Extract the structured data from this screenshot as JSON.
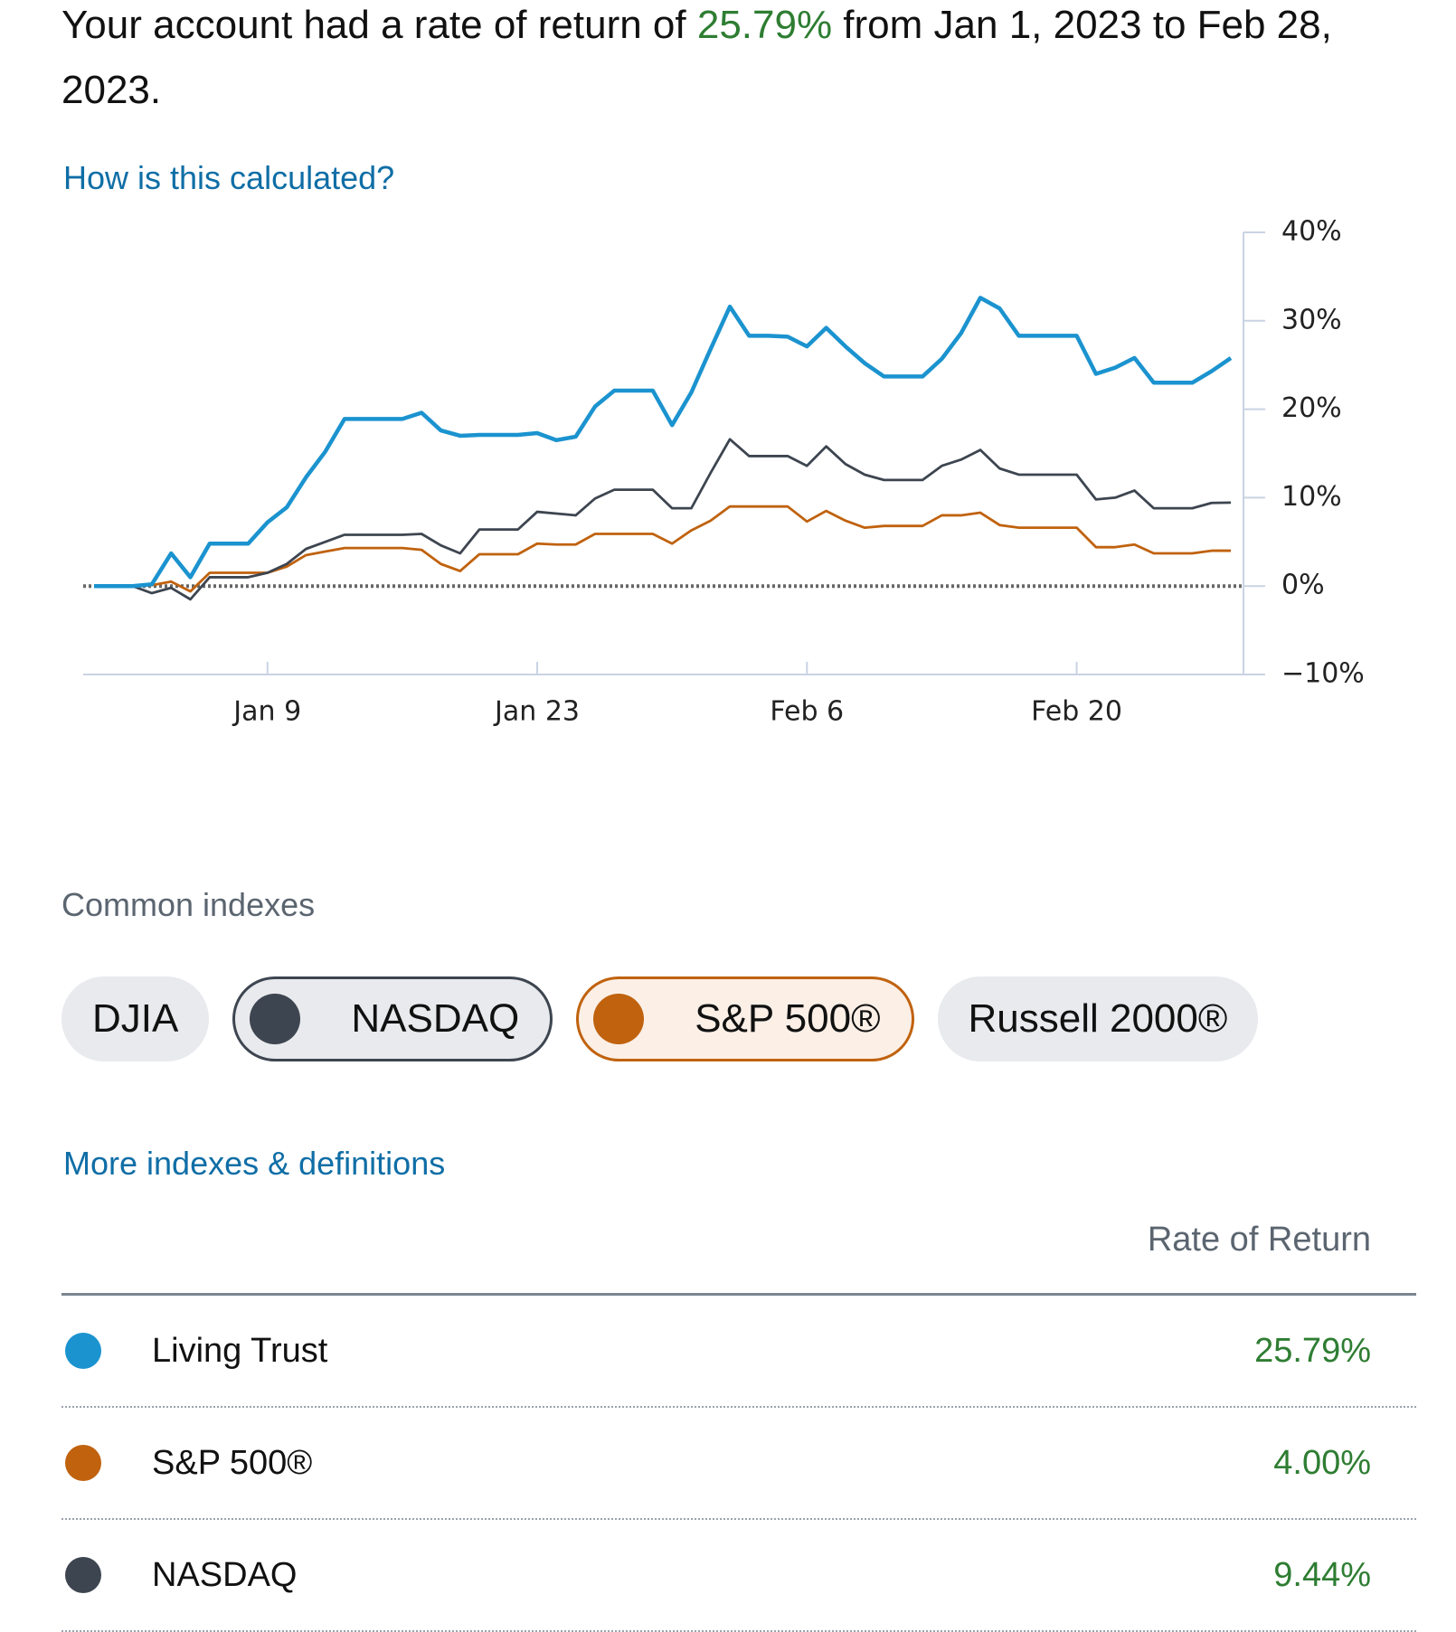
{
  "header": {
    "prefix": "Your account had a rate of return of ",
    "rate": "25.79%",
    "suffix": " from Jan 1, 2023 to Feb 28, 2023."
  },
  "calc_link": "How is this calculated?",
  "chart_data": {
    "type": "line",
    "x": [
      "Dec 31",
      "Jan 1",
      "Jan 2",
      "Jan 3",
      "Jan 4",
      "Jan 5",
      "Jan 6",
      "Jan 7",
      "Jan 8",
      "Jan 9",
      "Jan 10",
      "Jan 11",
      "Jan 12",
      "Jan 13",
      "Jan 14",
      "Jan 15",
      "Jan 16",
      "Jan 17",
      "Jan 18",
      "Jan 19",
      "Jan 20",
      "Jan 21",
      "Jan 22",
      "Jan 23",
      "Jan 24",
      "Jan 25",
      "Jan 26",
      "Jan 27",
      "Jan 28",
      "Jan 29",
      "Jan 30",
      "Jan 31",
      "Feb 1",
      "Feb 2",
      "Feb 3",
      "Feb 4",
      "Feb 5",
      "Feb 6",
      "Feb 7",
      "Feb 8",
      "Feb 9",
      "Feb 10",
      "Feb 11",
      "Feb 12",
      "Feb 13",
      "Feb 14",
      "Feb 15",
      "Feb 16",
      "Feb 17",
      "Feb 18",
      "Feb 19",
      "Feb 20",
      "Feb 21",
      "Feb 22",
      "Feb 23",
      "Feb 24",
      "Feb 25",
      "Feb 26",
      "Feb 27",
      "Feb 28"
    ],
    "xticks": [
      "Jan 9",
      "Jan 23",
      "Feb 6",
      "Feb 20"
    ],
    "ylim": [
      -10,
      40
    ],
    "yticks": [
      {
        "value": 40,
        "label": "40%"
      },
      {
        "value": 30,
        "label": "30%"
      },
      {
        "value": 20,
        "label": "20%"
      },
      {
        "value": 10,
        "label": "10%"
      },
      {
        "value": 0,
        "label": "0%"
      },
      {
        "value": -10,
        "label": "−10%"
      }
    ],
    "zero_line": true,
    "series": [
      {
        "name": "Living Trust",
        "color": "#1b93cf",
        "values": [
          0,
          0,
          0,
          0.2,
          3.7,
          1.0,
          4.8,
          4.8,
          4.8,
          7.2,
          8.9,
          12.3,
          15.2,
          18.9,
          18.9,
          18.9,
          18.9,
          19.6,
          17.6,
          17.0,
          17.1,
          17.1,
          17.1,
          17.3,
          16.5,
          16.9,
          20.3,
          22.1,
          22.1,
          22.1,
          18.2,
          21.9,
          26.8,
          31.6,
          28.3,
          28.3,
          28.2,
          27.1,
          29.2,
          27.1,
          25.2,
          23.7,
          23.7,
          23.7,
          25.7,
          28.6,
          32.6,
          31.4,
          28.3,
          28.3,
          28.3,
          28.3,
          24.0,
          24.7,
          25.8,
          23.0,
          23.0,
          23.0,
          24.3,
          25.79
        ]
      },
      {
        "name": "NASDAQ",
        "color": "#3d4550",
        "values": [
          0,
          0,
          0,
          -0.8,
          -0.2,
          -1.5,
          1.0,
          1.0,
          1.0,
          1.5,
          2.5,
          4.2,
          5.0,
          5.8,
          5.8,
          5.8,
          5.8,
          5.9,
          4.6,
          3.7,
          6.4,
          6.4,
          6.4,
          8.4,
          8.2,
          8.0,
          9.9,
          10.9,
          10.9,
          10.9,
          8.8,
          8.8,
          12.8,
          16.6,
          14.7,
          14.7,
          14.7,
          13.6,
          15.8,
          13.8,
          12.6,
          12.0,
          12.0,
          12.0,
          13.6,
          14.3,
          15.4,
          13.3,
          12.6,
          12.6,
          12.6,
          12.6,
          9.8,
          10.0,
          10.8,
          8.8,
          8.8,
          8.8,
          9.4,
          9.44
        ]
      },
      {
        "name": "S&P 500®",
        "color": "#c0620e",
        "values": [
          0,
          0,
          0,
          0.1,
          0.5,
          -0.6,
          1.5,
          1.5,
          1.5,
          1.5,
          2.2,
          3.5,
          3.9,
          4.3,
          4.3,
          4.3,
          4.3,
          4.1,
          2.5,
          1.7,
          3.6,
          3.6,
          3.6,
          4.8,
          4.7,
          4.7,
          5.9,
          5.9,
          5.9,
          5.9,
          4.8,
          6.3,
          7.4,
          9.0,
          9.0,
          9.0,
          9.0,
          7.3,
          8.5,
          7.4,
          6.6,
          6.8,
          6.8,
          6.8,
          8.0,
          8.0,
          8.3,
          6.9,
          6.6,
          6.6,
          6.6,
          6.6,
          4.4,
          4.4,
          4.7,
          3.7,
          3.7,
          3.7,
          4.0,
          4.0
        ]
      }
    ]
  },
  "indexes": {
    "title": "Common indexes",
    "items": [
      {
        "label": "DJIA",
        "selected": false
      },
      {
        "label": "NASDAQ",
        "selected": true,
        "color": "#3d4550"
      },
      {
        "label": "S&P 500®",
        "selected": true,
        "color": "#c0620e"
      },
      {
        "label": "Russell 2000®",
        "selected": false
      }
    ]
  },
  "more_link": "More indexes & definitions",
  "table": {
    "header": "Rate of Return",
    "rows": [
      {
        "name": "Living Trust",
        "value": "25.79%",
        "color": "#1b93cf"
      },
      {
        "name": "S&P 500®",
        "value": "4.00%",
        "color": "#c0620e"
      },
      {
        "name": "NASDAQ",
        "value": "9.44%",
        "color": "#3d4550"
      }
    ]
  }
}
